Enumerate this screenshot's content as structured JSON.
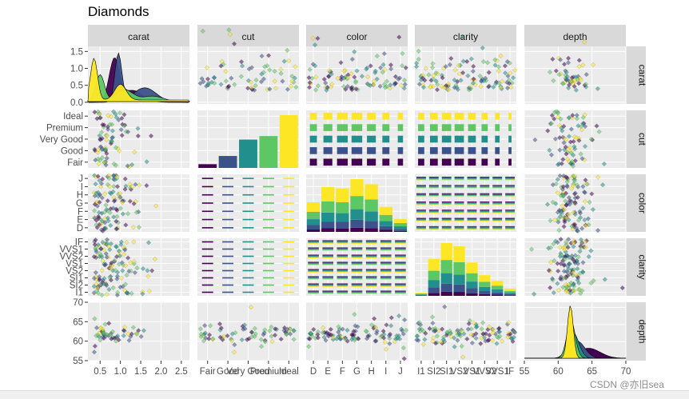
{
  "watermark": "CSDN @亦旧sea",
  "chart_data": {
    "type": "pairs-matrix",
    "title": "Diamonds",
    "variables": [
      "carat",
      "cut",
      "color",
      "clarity",
      "depth"
    ],
    "fill_palette": [
      "#440154",
      "#3b528b",
      "#21908c",
      "#5dc863",
      "#fde725"
    ],
    "levels": {
      "cut": [
        "Fair",
        "Good",
        "Very Good",
        "Premium",
        "Ideal"
      ],
      "color": [
        "D",
        "E",
        "F",
        "G",
        "H",
        "I",
        "J"
      ],
      "clarity": [
        "I1",
        "SI2",
        "SI1",
        "VS2",
        "VS1",
        "VVS2",
        "VVS1",
        "IF"
      ]
    },
    "axes": {
      "carat": {
        "x_ticks": [
          "0.5",
          "1.0",
          "1.5",
          "2.0",
          "2.5"
        ],
        "x_range": [
          0.2,
          2.7
        ],
        "y_ticks": [
          "0.0",
          "0.5",
          "1.0",
          "1.5"
        ],
        "y_range": [
          -0.05,
          1.65
        ]
      },
      "depth": {
        "x_ticks": [
          "55",
          "60",
          "65",
          "70"
        ],
        "x_range": [
          55,
          70
        ],
        "y_ticks": [
          "55",
          "60",
          "65",
          "70"
        ],
        "y_range": [
          55,
          70
        ]
      },
      "cut": {
        "x_ticks": [
          "Fair",
          "Good",
          "Very Good",
          "Premium",
          "Ideal"
        ]
      },
      "color": {
        "x_ticks": [
          "D",
          "E",
          "F",
          "G",
          "H",
          "I",
          "J"
        ]
      },
      "clarity": {
        "x_ticks": [
          "I1",
          "SI2",
          "SI1",
          "VS2",
          "VS1",
          "VVS2",
          "VVS1",
          "IF"
        ]
      }
    },
    "diagonal": {
      "cut_counts": [
        150,
        480,
        1140,
        1280,
        2120
      ],
      "color_counts": [
        640,
        970,
        940,
        1140,
        1030,
        540,
        280
      ],
      "clarity_counts": [
        80,
        910,
        1300,
        1220,
        820,
        510,
        370,
        180
      ],
      "carat_density_peak": 1.5,
      "depth_density_peak": 1.85
    }
  }
}
